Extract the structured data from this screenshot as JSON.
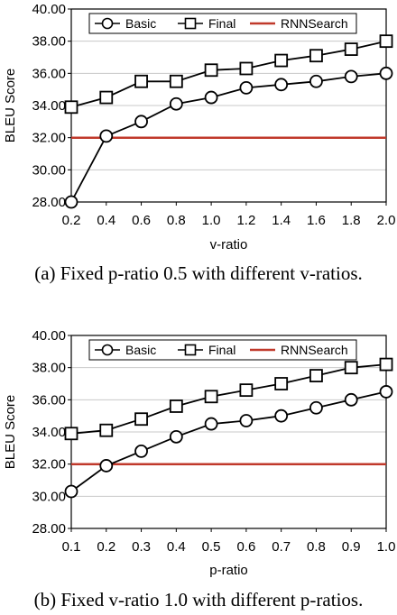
{
  "chart_data": [
    {
      "type": "line",
      "caption": "(a) Fixed p-ratio 0.5 with different v-ratios.",
      "xlabel": "v-ratio",
      "ylabel": "BLEU Score",
      "x": [
        0.2,
        0.4,
        0.6,
        0.8,
        1.0,
        1.2,
        1.4,
        1.6,
        1.8,
        2.0
      ],
      "x_tick_labels": [
        "0.2",
        "0.4",
        "0.6",
        "0.8",
        "1.0",
        "1.2",
        "1.4",
        "1.6",
        "1.8",
        "2.0"
      ],
      "ylim": [
        28,
        40
      ],
      "y_ticks": [
        28,
        30,
        32,
        34,
        36,
        38,
        40
      ],
      "y_tick_labels": [
        "28.00",
        "30.00",
        "32.00",
        "34.00",
        "36.00",
        "38.00",
        "40.00"
      ],
      "grid": "horizontal",
      "legend_position": "top",
      "series": [
        {
          "name": "Basic",
          "marker": "circle",
          "color": "#000000",
          "values": [
            28.0,
            32.1,
            33.0,
            34.1,
            34.5,
            35.1,
            35.3,
            35.5,
            35.8,
            36.0
          ]
        },
        {
          "name": "Final",
          "marker": "square",
          "color": "#000000",
          "values": [
            33.9,
            34.5,
            35.5,
            35.5,
            36.2,
            36.3,
            36.8,
            37.1,
            37.5,
            38.0
          ]
        },
        {
          "name": "RNNSearch",
          "marker": "none",
          "color": "#c0392b",
          "values": [
            32.0,
            32.0,
            32.0,
            32.0,
            32.0,
            32.0,
            32.0,
            32.0,
            32.0,
            32.0
          ]
        }
      ]
    },
    {
      "type": "line",
      "caption": "(b) Fixed v-ratio 1.0 with different p-ratios.",
      "xlabel": "p-ratio",
      "ylabel": "BLEU Score",
      "x": [
        0.1,
        0.2,
        0.3,
        0.4,
        0.5,
        0.6,
        0.7,
        0.8,
        0.9,
        1.0
      ],
      "x_tick_labels": [
        "0.1",
        "0.2",
        "0.3",
        "0.4",
        "0.5",
        "0.6",
        "0.7",
        "0.8",
        "0.9",
        "1.0"
      ],
      "ylim": [
        28,
        40
      ],
      "y_ticks": [
        28,
        30,
        32,
        34,
        36,
        38,
        40
      ],
      "y_tick_labels": [
        "28.00",
        "30.00",
        "32.00",
        "34.00",
        "36.00",
        "38.00",
        "40.00"
      ],
      "grid": "horizontal",
      "legend_position": "top",
      "series": [
        {
          "name": "Basic",
          "marker": "circle",
          "color": "#000000",
          "values": [
            30.3,
            31.9,
            32.8,
            33.7,
            34.5,
            34.7,
            35.0,
            35.5,
            36.0,
            36.5
          ]
        },
        {
          "name": "Final",
          "marker": "square",
          "color": "#000000",
          "values": [
            33.9,
            34.1,
            34.8,
            35.6,
            36.2,
            36.6,
            37.0,
            37.5,
            38.0,
            38.2
          ]
        },
        {
          "name": "RNNSearch",
          "marker": "none",
          "color": "#c0392b",
          "values": [
            32.0,
            32.0,
            32.0,
            32.0,
            32.0,
            32.0,
            32.0,
            32.0,
            32.0,
            32.0
          ]
        }
      ]
    }
  ]
}
